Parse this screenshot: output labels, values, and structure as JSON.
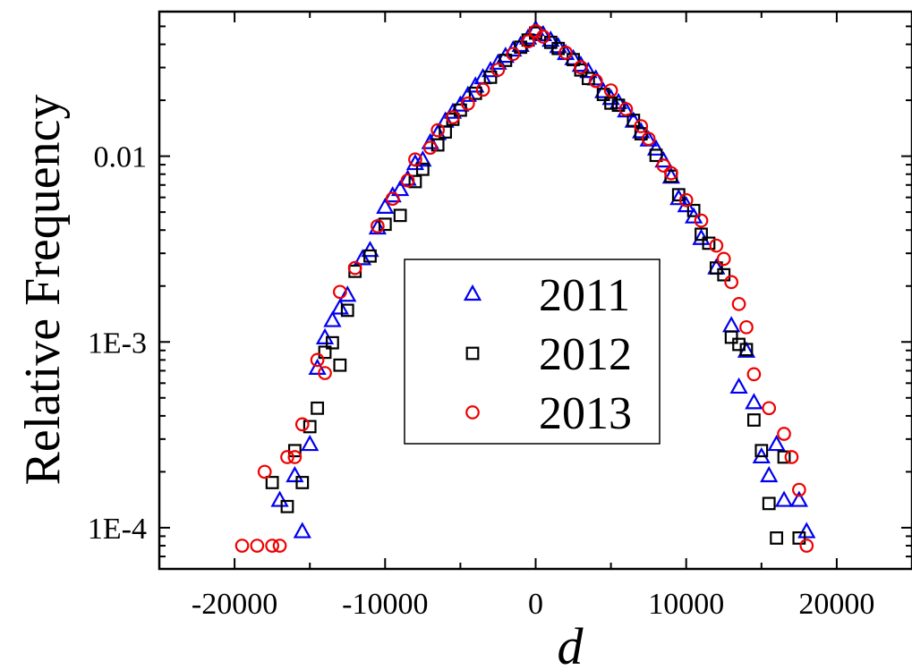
{
  "chart_data": {
    "type": "scatter",
    "xlabel": "d",
    "ylabel": "Relative Frequency",
    "xlim": [
      -25000,
      25000
    ],
    "ylim": [
      6e-05,
      0.06
    ],
    "y_scale": "log",
    "x_ticks": [
      -20000,
      -10000,
      0,
      10000,
      20000
    ],
    "x_tick_labels": [
      "-20000",
      "-10000",
      "0",
      "10000",
      "20000"
    ],
    "y_ticks": [
      0.0001,
      0.001,
      0.01
    ],
    "y_tick_labels": [
      "1E-4",
      "1E-3",
      "0.01"
    ],
    "legend_position": "center",
    "series": [
      {
        "name": "2011",
        "marker": "triangle",
        "color": "#0000ee",
        "points": [
          [
            -17000,
            0.00014
          ],
          [
            -15500,
            9.5e-05
          ],
          [
            -16000,
            0.00019
          ],
          [
            -15000,
            0.00028
          ],
          [
            -14500,
            0.00072
          ],
          [
            -14000,
            0.00105
          ],
          [
            -13500,
            0.0013
          ],
          [
            -13000,
            0.00152
          ],
          [
            -12500,
            0.00178
          ],
          [
            -11500,
            0.0028
          ],
          [
            -11000,
            0.0031
          ],
          [
            -10500,
            0.0041
          ],
          [
            -10000,
            0.0053
          ],
          [
            -9500,
            0.0061
          ],
          [
            -9000,
            0.0066
          ],
          [
            -8500,
            0.0075
          ],
          [
            -8000,
            0.0091
          ],
          [
            -7500,
            0.0095
          ],
          [
            -7000,
            0.0118
          ],
          [
            -6500,
            0.0132
          ],
          [
            -6000,
            0.0154
          ],
          [
            -5500,
            0.0172
          ],
          [
            -5000,
            0.0188
          ],
          [
            -4500,
            0.0212
          ],
          [
            -4000,
            0.0238
          ],
          [
            -3500,
            0.0264
          ],
          [
            -3000,
            0.0288
          ],
          [
            -2500,
            0.0316
          ],
          [
            -2000,
            0.0344
          ],
          [
            -1500,
            0.0372
          ],
          [
            -1000,
            0.0394
          ],
          [
            -500,
            0.0432
          ],
          [
            0,
            0.048
          ],
          [
            500,
            0.045
          ],
          [
            1000,
            0.042
          ],
          [
            1500,
            0.0388
          ],
          [
            2000,
            0.0356
          ],
          [
            2500,
            0.0334
          ],
          [
            3000,
            0.0308
          ],
          [
            3500,
            0.0285
          ],
          [
            4000,
            0.026
          ],
          [
            4500,
            0.0222
          ],
          [
            5000,
            0.0204
          ],
          [
            5500,
            0.0194
          ],
          [
            6000,
            0.0175
          ],
          [
            6500,
            0.0154
          ],
          [
            7000,
            0.0135
          ],
          [
            7500,
            0.0122
          ],
          [
            8000,
            0.0109
          ],
          [
            8500,
            0.0094
          ],
          [
            9000,
            0.0077
          ],
          [
            9500,
            0.0059
          ],
          [
            10000,
            0.0054
          ],
          [
            10500,
            0.0047
          ],
          [
            11000,
            0.0036
          ],
          [
            12000,
            0.0025
          ],
          [
            13000,
            0.00122
          ],
          [
            13500,
            0.00057
          ],
          [
            14000,
            0.00089
          ],
          [
            14500,
            0.00047
          ],
          [
            15000,
            0.00024
          ],
          [
            15500,
            0.00019
          ],
          [
            16000,
            0.00028
          ],
          [
            16500,
            0.00014
          ],
          [
            17500,
            0.00014
          ],
          [
            18000,
            9.5e-05
          ]
        ]
      },
      {
        "name": "2012",
        "marker": "square",
        "color": "#000000",
        "points": [
          [
            -17500,
            0.000175
          ],
          [
            -16500,
            0.00013
          ],
          [
            -16000,
            0.00026
          ],
          [
            -15500,
            0.000175
          ],
          [
            -15000,
            0.00035
          ],
          [
            -14500,
            0.00044
          ],
          [
            -14000,
            0.00088
          ],
          [
            -13500,
            0.00099
          ],
          [
            -13000,
            0.00075
          ],
          [
            -12500,
            0.00148
          ],
          [
            -12000,
            0.0024
          ],
          [
            -11000,
            0.0029
          ],
          [
            -10000,
            0.0043
          ],
          [
            -9000,
            0.0048
          ],
          [
            -8000,
            0.0073
          ],
          [
            -7500,
            0.0085
          ],
          [
            -6500,
            0.0115
          ],
          [
            -6000,
            0.0135
          ],
          [
            -5500,
            0.0158
          ],
          [
            -5000,
            0.0177
          ],
          [
            -4000,
            0.0218
          ],
          [
            -3000,
            0.0266
          ],
          [
            -2000,
            0.0328
          ],
          [
            -1000,
            0.0386
          ],
          [
            -500,
            0.0422
          ],
          [
            0,
            0.046
          ],
          [
            1000,
            0.041
          ],
          [
            1500,
            0.038
          ],
          [
            2500,
            0.0331
          ],
          [
            3000,
            0.0291
          ],
          [
            3500,
            0.0262
          ],
          [
            4500,
            0.0215
          ],
          [
            5000,
            0.0193
          ],
          [
            5500,
            0.0188
          ],
          [
            6500,
            0.0156
          ],
          [
            7000,
            0.0132
          ],
          [
            8000,
            0.0101
          ],
          [
            9000,
            0.0078
          ],
          [
            9500,
            0.0062
          ],
          [
            10500,
            0.0051
          ],
          [
            11000,
            0.0038
          ],
          [
            11500,
            0.0034
          ],
          [
            12000,
            0.0025
          ],
          [
            12500,
            0.0023
          ],
          [
            13000,
            0.00106
          ],
          [
            13500,
            0.00097
          ],
          [
            14000,
            0.00091
          ],
          [
            14500,
            0.00038
          ],
          [
            15000,
            0.00026
          ],
          [
            15500,
            0.000135
          ],
          [
            16000,
            8.8e-05
          ],
          [
            16500,
            0.00024
          ],
          [
            17500,
            8.8e-05
          ]
        ]
      },
      {
        "name": "2013",
        "marker": "circle",
        "color": "#ee0000",
        "points": [
          [
            -19500,
            8e-05
          ],
          [
            -18500,
            8e-05
          ],
          [
            -17500,
            8e-05
          ],
          [
            -17000,
            8e-05
          ],
          [
            -18000,
            0.0002
          ],
          [
            -16500,
            0.00024
          ],
          [
            -16000,
            0.00024
          ],
          [
            -15500,
            0.00036
          ],
          [
            -14500,
            0.0008
          ],
          [
            -14000,
            0.00068
          ],
          [
            -13000,
            0.00186
          ],
          [
            -12000,
            0.0025
          ],
          [
            -10500,
            0.0042
          ],
          [
            -9500,
            0.0059
          ],
          [
            -8500,
            0.0074
          ],
          [
            -8000,
            0.0096
          ],
          [
            -7000,
            0.0111
          ],
          [
            -6500,
            0.0138
          ],
          [
            -5500,
            0.0162
          ],
          [
            -4500,
            0.0192
          ],
          [
            -3500,
            0.0228
          ],
          [
            -2500,
            0.0292
          ],
          [
            -1500,
            0.0355
          ],
          [
            -500,
            0.0415
          ],
          [
            0,
            0.047
          ],
          [
            500,
            0.044
          ],
          [
            2000,
            0.0361
          ],
          [
            3000,
            0.0301
          ],
          [
            4000,
            0.0254
          ],
          [
            5000,
            0.0226
          ],
          [
            6000,
            0.0179
          ],
          [
            7000,
            0.0145
          ],
          [
            7500,
            0.0124
          ],
          [
            8500,
            0.0089
          ],
          [
            9000,
            0.0081
          ],
          [
            10000,
            0.0058
          ],
          [
            11000,
            0.0045
          ],
          [
            12000,
            0.0033
          ],
          [
            12500,
            0.0028
          ],
          [
            13000,
            0.0021
          ],
          [
            13500,
            0.0016
          ],
          [
            14000,
            0.0012
          ],
          [
            14500,
            0.00067
          ],
          [
            15500,
            0.00044
          ],
          [
            16500,
            0.00032
          ],
          [
            17000,
            0.00024
          ],
          [
            17500,
            0.00016
          ],
          [
            18000,
            8e-05
          ]
        ]
      }
    ]
  }
}
